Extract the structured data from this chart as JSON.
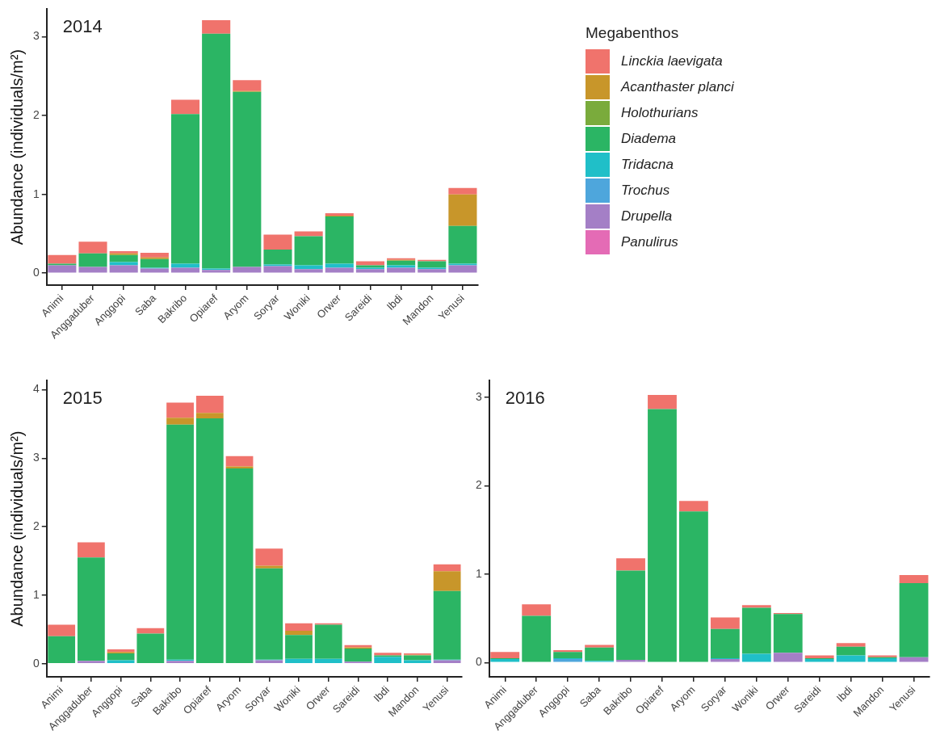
{
  "chart_data": [
    {
      "type": "bar",
      "title": "2014",
      "ylabel": "Abundance (individuals/m²)",
      "legend_title": "Megabenthos",
      "legend": "right",
      "stacked": true,
      "grid": false,
      "categories": [
        "Animi",
        "Anggaduber",
        "Anggopi",
        "Saba",
        "Bakribo",
        "Opiaref",
        "Aryom",
        "Soryar",
        "Woniki",
        "Orwer",
        "Sareidi",
        "Ibdi",
        "Mandon",
        "Yenusi"
      ],
      "ylim": [
        -0.15,
        3.35
      ],
      "yticks": [
        0,
        1,
        2,
        3
      ],
      "series": [
        {
          "name": "Panulirus",
          "color": "#e46bb5",
          "values": [
            0,
            0,
            0,
            0,
            0,
            0,
            0,
            0,
            0,
            0,
            0,
            0,
            0,
            0
          ]
        },
        {
          "name": "Drupella",
          "color": "#a47fc6",
          "values": [
            0.1,
            0.08,
            0.1,
            0.06,
            0.07,
            0.04,
            0.08,
            0.09,
            0.05,
            0.07,
            0.05,
            0.07,
            0.05,
            0.1
          ]
        },
        {
          "name": "Trochus",
          "color": "#4ea6dc",
          "values": [
            0,
            0,
            0,
            0,
            0,
            0,
            0,
            0,
            0,
            0,
            0,
            0,
            0,
            0
          ]
        },
        {
          "name": "Tridacna",
          "color": "#20bfc8",
          "values": [
            0,
            0,
            0.04,
            0.01,
            0.05,
            0.02,
            0,
            0.02,
            0.05,
            0.05,
            0.02,
            0.03,
            0.02,
            0.02
          ]
        },
        {
          "name": "Diadema",
          "color": "#2bb564",
          "values": [
            0.02,
            0.17,
            0.09,
            0.11,
            1.9,
            2.98,
            2.22,
            0.19,
            0.37,
            0.6,
            0.03,
            0.06,
            0.08,
            0.48
          ]
        },
        {
          "name": "Holothurians",
          "color": "#7aab3c",
          "values": [
            0,
            0,
            0,
            0,
            0,
            0,
            0,
            0,
            0,
            0,
            0,
            0,
            0,
            0
          ]
        },
        {
          "name": "Acanthaster planci",
          "color": "#c8962a",
          "values": [
            0,
            0,
            0.02,
            0.02,
            0,
            0,
            0.01,
            0,
            0,
            0.01,
            0,
            0.01,
            0,
            0.4
          ]
        },
        {
          "name": "Linckia laevigata",
          "color": "#f0736c",
          "values": [
            0.11,
            0.15,
            0.03,
            0.06,
            0.18,
            0.17,
            0.14,
            0.19,
            0.06,
            0.03,
            0.05,
            0.02,
            0.02,
            0.08
          ]
        }
      ]
    },
    {
      "type": "bar",
      "title": "2015",
      "ylabel": "Abundance (individuals/m²)",
      "stacked": true,
      "grid": false,
      "categories": [
        "Animi",
        "Anggaduber",
        "Anggopi",
        "Saba",
        "Bakribo",
        "Opiaref",
        "Aryom",
        "Soryar",
        "Woniki",
        "Orwer",
        "Sareidi",
        "Ibdi",
        "Mandon",
        "Yenusi"
      ],
      "ylim": [
        -0.19,
        4.13
      ],
      "yticks": [
        0,
        1,
        2,
        3,
        4
      ],
      "series": [
        {
          "color": "#e46bb5",
          "values": [
            0,
            0,
            0,
            0,
            0,
            0,
            0,
            0,
            0,
            0,
            0,
            0,
            0,
            0
          ]
        },
        {
          "color": "#a47fc6",
          "values": [
            0,
            0.04,
            0,
            0,
            0.04,
            0,
            0,
            0.05,
            0,
            0,
            0.03,
            0,
            0,
            0.05
          ]
        },
        {
          "color": "#4ea6dc",
          "values": [
            0,
            0,
            0,
            0,
            0,
            0,
            0,
            0,
            0,
            0,
            0,
            0,
            0,
            0
          ]
        },
        {
          "color": "#20bfc8",
          "values": [
            0.01,
            0,
            0.05,
            0,
            0.02,
            0,
            0,
            0.01,
            0.07,
            0.07,
            0,
            0.1,
            0.05,
            0.01
          ]
        },
        {
          "color": "#2bb564",
          "values": [
            0.39,
            1.51,
            0.1,
            0.44,
            3.43,
            3.58,
            2.85,
            1.33,
            0.35,
            0.5,
            0.19,
            0.02,
            0.07,
            1.0
          ]
        },
        {
          "color": "#7aab3c",
          "values": [
            0,
            0,
            0,
            0,
            0,
            0,
            0,
            0,
            0,
            0,
            0,
            0,
            0,
            0
          ]
        },
        {
          "color": "#c8962a",
          "values": [
            0,
            0,
            0.02,
            0,
            0.1,
            0.08,
            0.03,
            0.04,
            0.06,
            0,
            0.02,
            0,
            0.01,
            0.29
          ]
        },
        {
          "color": "#f0736c",
          "values": [
            0.17,
            0.22,
            0.04,
            0.08,
            0.22,
            0.25,
            0.15,
            0.25,
            0.11,
            0.02,
            0.03,
            0.04,
            0.02,
            0.1
          ]
        }
      ]
    },
    {
      "type": "bar",
      "title": "2016",
      "stacked": true,
      "grid": false,
      "categories": [
        "Animi",
        "Anggaduber",
        "Anggopi",
        "Saba",
        "Bakribo",
        "Opiaref",
        "Aryom",
        "Soryar",
        "Woniki",
        "Orwer",
        "Sareidi",
        "Ibdi",
        "Mandon",
        "Yenusi"
      ],
      "ylim": [
        -0.16,
        3.19
      ],
      "yticks": [
        0,
        1,
        2,
        3
      ],
      "series": [
        {
          "color": "#e46bb5",
          "values": [
            0,
            0,
            0,
            0,
            0,
            0,
            0,
            0,
            0,
            0,
            0,
            0,
            0,
            0
          ]
        },
        {
          "color": "#a47fc6",
          "values": [
            0,
            0,
            0,
            0,
            0.03,
            0,
            0,
            0.04,
            0,
            0.11,
            0,
            0,
            0,
            0.06
          ]
        },
        {
          "color": "#4ea6dc",
          "values": [
            0,
            0,
            0.04,
            0,
            0,
            0,
            0,
            0,
            0,
            0,
            0,
            0,
            0,
            0
          ]
        },
        {
          "color": "#20bfc8",
          "values": [
            0.04,
            0,
            0.01,
            0.02,
            0,
            0,
            0,
            0.01,
            0.1,
            0,
            0.04,
            0.08,
            0.05,
            0
          ]
        },
        {
          "color": "#2bb564",
          "values": [
            0.01,
            0.53,
            0.07,
            0.15,
            1.01,
            2.87,
            1.71,
            0.33,
            0.52,
            0.44,
            0.01,
            0.1,
            0.01,
            0.84
          ]
        },
        {
          "color": "#7aab3c",
          "values": [
            0,
            0,
            0,
            0,
            0,
            0,
            0,
            0,
            0,
            0,
            0,
            0,
            0,
            0
          ]
        },
        {
          "color": "#c8962a",
          "values": [
            0,
            0,
            0,
            0,
            0,
            0,
            0,
            0,
            0,
            0,
            0,
            0,
            0,
            0
          ]
        },
        {
          "color": "#f0736c",
          "values": [
            0.07,
            0.13,
            0.02,
            0.03,
            0.14,
            0.16,
            0.12,
            0.13,
            0.03,
            0.01,
            0.03,
            0.04,
            0.02,
            0.09
          ]
        }
      ]
    }
  ]
}
